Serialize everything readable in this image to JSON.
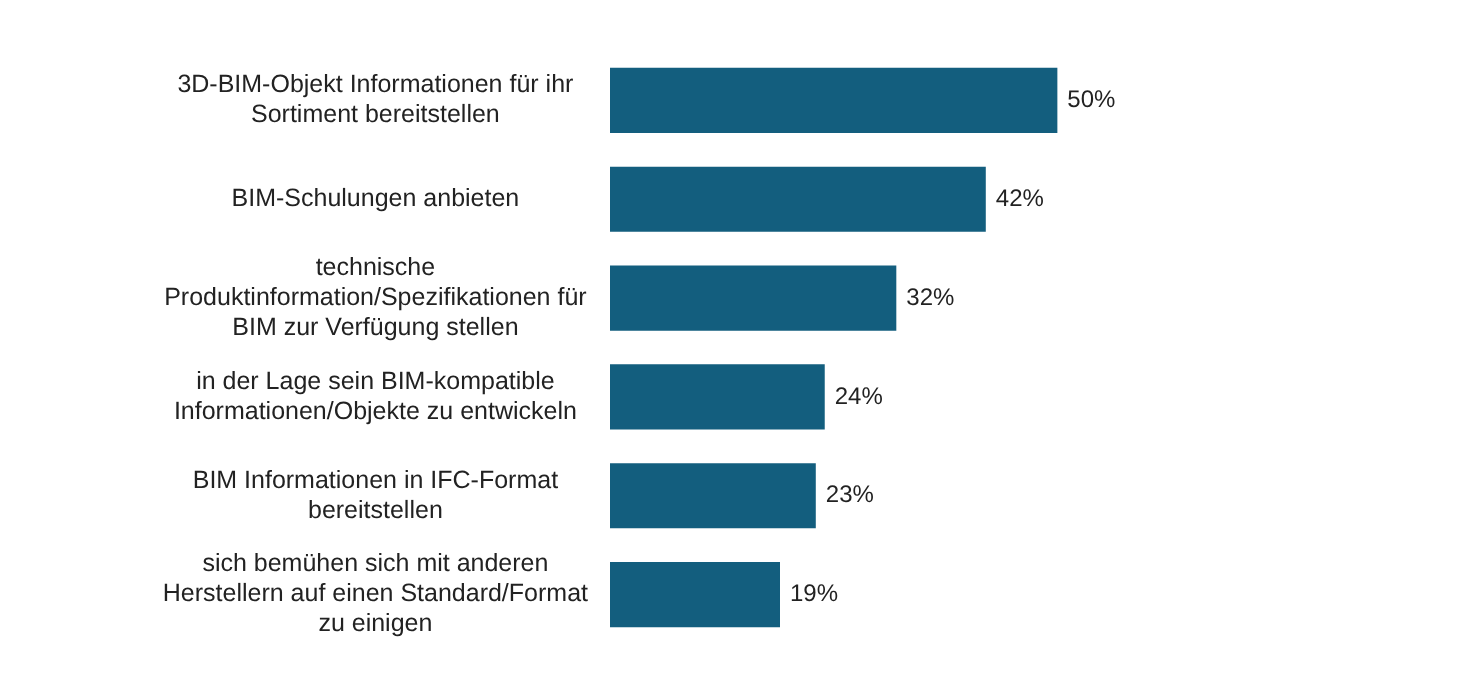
{
  "chart_data": {
    "type": "bar",
    "orientation": "horizontal",
    "categories": [
      "3D-BIM-Objekt Informationen für ihr Sortiment bereitstellen",
      "BIM-Schulungen anbieten",
      "technische Produktinformation/Spezifikationen für BIM zur Verfügung stellen",
      "in der Lage sein BIM-kompatible Informationen/Objekte zu entwickeln",
      "BIM Informationen in IFC-Format bereitstellen",
      "sich bemühen sich mit anderen Herstellern auf einen Standard/Format zu einigen"
    ],
    "values": [
      50,
      42,
      32,
      24,
      23,
      19
    ],
    "value_labels": [
      "50%",
      "42%",
      "32%",
      "24%",
      "23%",
      "19%"
    ],
    "color": "#135e7e",
    "legend": false
  }
}
